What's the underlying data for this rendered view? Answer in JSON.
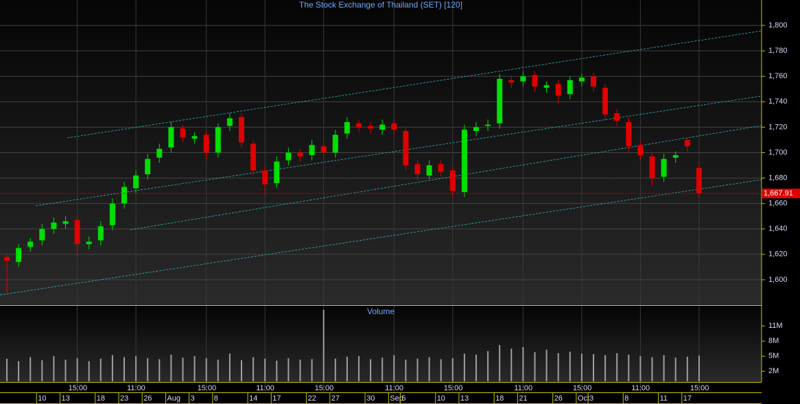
{
  "chart_data": [
    {
      "type": "candlestick",
      "title": "The Stock Exchange of Thailand (SET) [120]",
      "categories": [
        null,
        null,
        null,
        "10",
        null,
        "13",
        null,
        null,
        "18",
        null,
        "23",
        null,
        "26",
        null,
        "Aug",
        null,
        "3",
        null,
        "8",
        null,
        null,
        "14",
        null,
        "17",
        null,
        null,
        "22",
        null,
        "27",
        null,
        null,
        "30",
        null,
        "Sep",
        "5",
        null,
        null,
        "10",
        null,
        "13",
        null,
        null,
        "18",
        null,
        "21",
        null,
        null,
        "26",
        null,
        "Oct",
        "3",
        null,
        null,
        "8",
        null,
        null,
        "11",
        null,
        "17",
        null
      ],
      "time_labels": [
        null,
        null,
        null,
        null,
        null,
        null,
        "15:00",
        null,
        null,
        null,
        null,
        "11:00",
        null,
        null,
        null,
        null,
        null,
        "15:00",
        null,
        null,
        null,
        null,
        "11:00",
        null,
        null,
        null,
        null,
        "15:00",
        null,
        null,
        null,
        null,
        null,
        "11:00",
        null,
        null,
        null,
        null,
        "15:00",
        null,
        null,
        null,
        null,
        null,
        "11:00",
        null,
        null,
        null,
        null,
        "15:00",
        null,
        null,
        null,
        null,
        "11:00",
        null,
        null,
        null,
        null,
        "15:00"
      ],
      "open": [
        1618,
        1614,
        1626,
        1631,
        1640,
        1644,
        1647,
        1628,
        1631,
        1643,
        1660,
        1672,
        1683,
        1696,
        1704,
        1719,
        1711,
        1714,
        1700,
        1721,
        1728,
        1707,
        1686,
        1676,
        1694,
        1700,
        1698,
        1705,
        1700,
        1715,
        1723,
        1721,
        1718,
        1723,
        1717,
        1691,
        1682,
        1691,
        1686,
        1669,
        1717,
        1721,
        1723,
        1757,
        1756,
        1761,
        1751,
        1754,
        1746,
        1756,
        1760,
        1751,
        1731,
        1724,
        1706,
        1697,
        1681,
        1696,
        1710,
        1688
      ],
      "high": [
        1620,
        1628,
        1633,
        1644,
        1649,
        1650,
        1650,
        1634,
        1646,
        1664,
        1677,
        1686,
        1699,
        1707,
        1724,
        1722,
        1716,
        1717,
        1723,
        1731,
        1731,
        1710,
        1690,
        1697,
        1704,
        1703,
        1710,
        1708,
        1718,
        1728,
        1726,
        1724,
        1726,
        1726,
        1720,
        1694,
        1694,
        1694,
        1689,
        1722,
        1724,
        1726,
        1762,
        1760,
        1764,
        1764,
        1756,
        1757,
        1760,
        1762,
        1763,
        1754,
        1734,
        1728,
        1709,
        1700,
        1699,
        1701,
        1712,
        1692
      ],
      "low": [
        1590,
        1610,
        1622,
        1627,
        1636,
        1640,
        1618,
        1624,
        1627,
        1639,
        1656,
        1668,
        1679,
        1692,
        1700,
        1708,
        1707,
        1694,
        1696,
        1717,
        1704,
        1682,
        1666,
        1672,
        1690,
        1693,
        1694,
        1696,
        1696,
        1711,
        1716,
        1715,
        1714,
        1714,
        1686,
        1678,
        1679,
        1681,
        1665,
        1665,
        1713,
        1717,
        1719,
        1751,
        1752,
        1748,
        1747,
        1738,
        1742,
        1752,
        1748,
        1726,
        1721,
        1700,
        1694,
        1674,
        1677,
        1692,
        1701,
        1664
      ],
      "close": [
        1615,
        1625,
        1630,
        1640,
        1645,
        1646,
        1628,
        1630,
        1642,
        1660,
        1673,
        1682,
        1695,
        1703,
        1720,
        1712,
        1713,
        1700,
        1720,
        1727,
        1708,
        1686,
        1675,
        1693,
        1700,
        1697,
        1706,
        1700,
        1714,
        1724,
        1720,
        1719,
        1722,
        1718,
        1690,
        1683,
        1690,
        1685,
        1670,
        1718,
        1720,
        1722,
        1758,
        1755,
        1760,
        1752,
        1753,
        1745,
        1757,
        1759,
        1752,
        1730,
        1725,
        1705,
        1698,
        1680,
        1695,
        1698,
        1705,
        1668
      ],
      "up_color": "#00e000",
      "down_color": "#e00000",
      "ylim": [
        1580,
        1820
      ],
      "yticks": [
        {
          "value": 1600,
          "label": "1,600"
        },
        {
          "value": 1620,
          "label": "1,620"
        },
        {
          "value": 1640,
          "label": "1,640"
        },
        {
          "value": 1660,
          "label": "1,660"
        },
        {
          "value": 1680,
          "label": "1,680"
        },
        {
          "value": 1700,
          "label": "1,700"
        },
        {
          "value": 1720,
          "label": "1,720"
        },
        {
          "value": 1740,
          "label": "1,740"
        },
        {
          "value": 1760,
          "label": "1,760"
        },
        {
          "value": 1780,
          "label": "1,780"
        },
        {
          "value": 1800,
          "label": "1,800"
        }
      ],
      "last_price": {
        "value": 1667.91,
        "label": "1,667.91"
      },
      "grid": true
    },
    {
      "type": "bar",
      "title": "Volume",
      "values": [
        4.5,
        4,
        4.8,
        4.2,
        5,
        4.3,
        4.6,
        4,
        4.5,
        5.2,
        4.8,
        5,
        4.6,
        4.4,
        5.3,
        4.7,
        5,
        4.6,
        4.3,
        5.5,
        4.2,
        4.8,
        4.5,
        4.1,
        4.6,
        4.3,
        4.4,
        14.2,
        4.5,
        4.9,
        5,
        4.4,
        4.7,
        5.2,
        4.3,
        4.5,
        4.8,
        4.4,
        4.6,
        5.5,
        5.3,
        6,
        7.2,
        6.5,
        6.8,
        5.8,
        6.3,
        5.6,
        5.9,
        5.5,
        5.4,
        5.2,
        5.6,
        5.3,
        5,
        4.8,
        5.2,
        4.7,
        4.9,
        5.1
      ],
      "color": "#a0a0a0",
      "ylim": [
        0,
        14.7
      ],
      "yticks": [
        {
          "value": 2,
          "label": "2M"
        },
        {
          "value": 5,
          "label": "5M"
        },
        {
          "value": 8,
          "label": "8M"
        },
        {
          "value": 11,
          "label": "11M"
        }
      ]
    }
  ]
}
